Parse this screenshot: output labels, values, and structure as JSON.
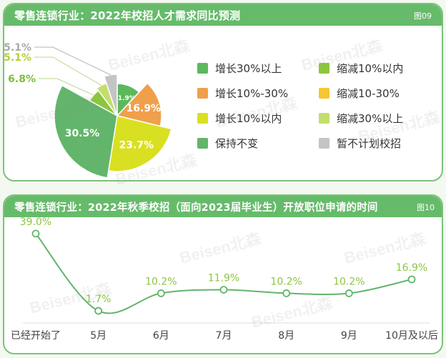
{
  "watermark_text": "Beisen北森",
  "chart_data": [
    {
      "type": "pie",
      "title": "零售连锁行业：2022年校招人才需求同比预测",
      "figure_label": "图09",
      "slices": [
        {
          "label": "增长30%以上",
          "value": 11.9,
          "value_label": "11.9%",
          "color": "#5cb85c"
        },
        {
          "label": "增长10%-30%",
          "value": 16.9,
          "value_label": "16.9%",
          "color": "#f0a04b"
        },
        {
          "label": "增长10%以内",
          "value": 23.7,
          "value_label": "23.7%",
          "color": "#d9e021"
        },
        {
          "label": "保持不变",
          "value": 30.5,
          "value_label": "30.5%",
          "color": "#62b56a"
        },
        {
          "label": "缩减10%以内",
          "value": 6.8,
          "value_label": "6.8%",
          "color": "#8cc63f"
        },
        {
          "label": "缩减10-30%",
          "value": 0,
          "value_label": "",
          "color": "#f7c531"
        },
        {
          "label": "缩减30%以上",
          "value": 5.1,
          "value_label": "5.1%",
          "color": "#c3de6e"
        },
        {
          "label": "暂不计划校招",
          "value": 5.1,
          "value_label": "5.1%",
          "color": "#c4c4c4"
        }
      ],
      "legend": [
        {
          "label": "增长30%以上",
          "color": "#5cb85c"
        },
        {
          "label": "缩减10%以内",
          "color": "#8cc63f"
        },
        {
          "label": "增长10%-30%",
          "color": "#f0a04b"
        },
        {
          "label": "缩减10-30%",
          "color": "#f7c531"
        },
        {
          "label": "增长10%以内",
          "color": "#d9e021"
        },
        {
          "label": "缩减30%以上",
          "color": "#c3de6e"
        },
        {
          "label": "保持不变",
          "color": "#62b56a"
        },
        {
          "label": "暂不计划校招",
          "color": "#c4c4c4"
        }
      ]
    },
    {
      "type": "line",
      "title": "零售连锁行业：2022年秋季校招（面向2023届毕业生）开放职位申请的时间",
      "figure_label": "图10",
      "categories": [
        "已经开始了",
        "5月",
        "6月",
        "7月",
        "8月",
        "9月",
        "10月及以后"
      ],
      "values": [
        39.0,
        1.7,
        10.2,
        11.9,
        10.2,
        10.2,
        16.9
      ],
      "value_labels": [
        "39.0%",
        "1.7%",
        "10.2%",
        "11.9%",
        "10.2%",
        "10.2%",
        "16.9%"
      ],
      "ylim": [
        0,
        40
      ],
      "color": "#62b56a",
      "label_color": "#8cc63f"
    }
  ]
}
